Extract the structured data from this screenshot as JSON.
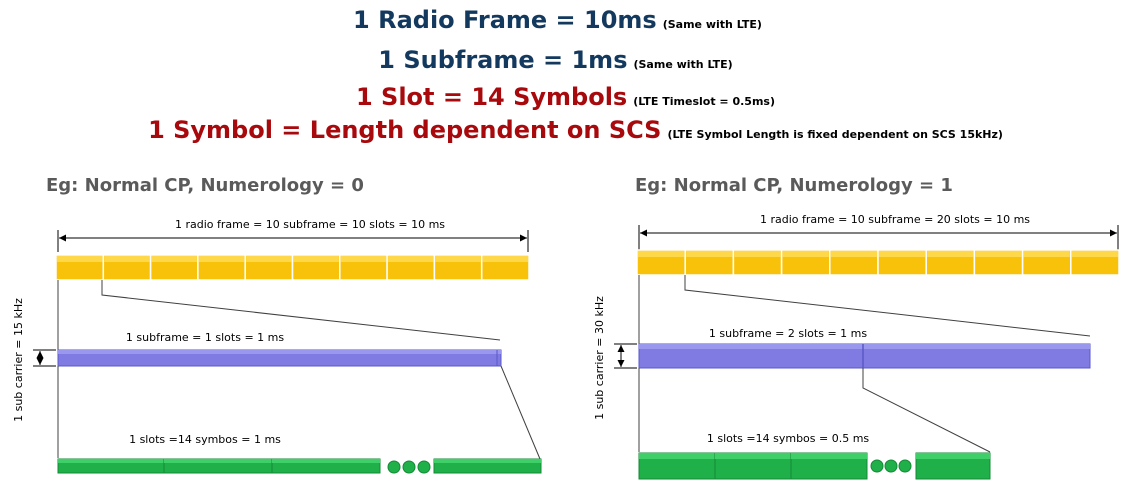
{
  "headlines": [
    {
      "main": "1 Radio Frame = 10ms",
      "note": "(Same with LTE)",
      "color": "#13395e"
    },
    {
      "main": "1 Subframe = 1ms",
      "note": "(Same with LTE)",
      "color": "#13395e"
    },
    {
      "main": "1 Slot = 14 Symbols",
      "note": "(LTE Timeslot = 0.5ms)",
      "color": "#a8090c"
    },
    {
      "main": "1 Symbol = Length dependent on SCS",
      "note": "(LTE Symbol Length is fixed dependent on SCS 15kHz)",
      "color": "#a8090c"
    }
  ],
  "colors": {
    "frame_fill": "#f9c20a",
    "subframe_fill": "#7f7be3",
    "symbol_fill": "#20b04a",
    "line": "#404040"
  },
  "examples": [
    {
      "heading": "Eg: Normal CP, Numerology = 0",
      "frame_label": "1 radio frame = 10 subframe = 10 slots = 10 ms",
      "subframe_label": "1 subframe = 1 slots = 1 ms",
      "slot_label": "1 slots =14 symbos = 1 ms",
      "subcarrier_label": "1 sub carrier = 15 kHz",
      "subframe_count": 10,
      "slots_per_subframe": 1
    },
    {
      "heading": "Eg: Normal CP, Numerology = 1",
      "frame_label": "1 radio frame = 10 subframe = 20 slots = 10 ms",
      "subframe_label": "1 subframe = 2 slots = 1 ms",
      "slot_label": "1 slots =14 symbos = 0.5 ms",
      "subcarrier_label": "1 sub carrier = 30 kHz",
      "subframe_count": 10,
      "slots_per_subframe": 2
    }
  ]
}
